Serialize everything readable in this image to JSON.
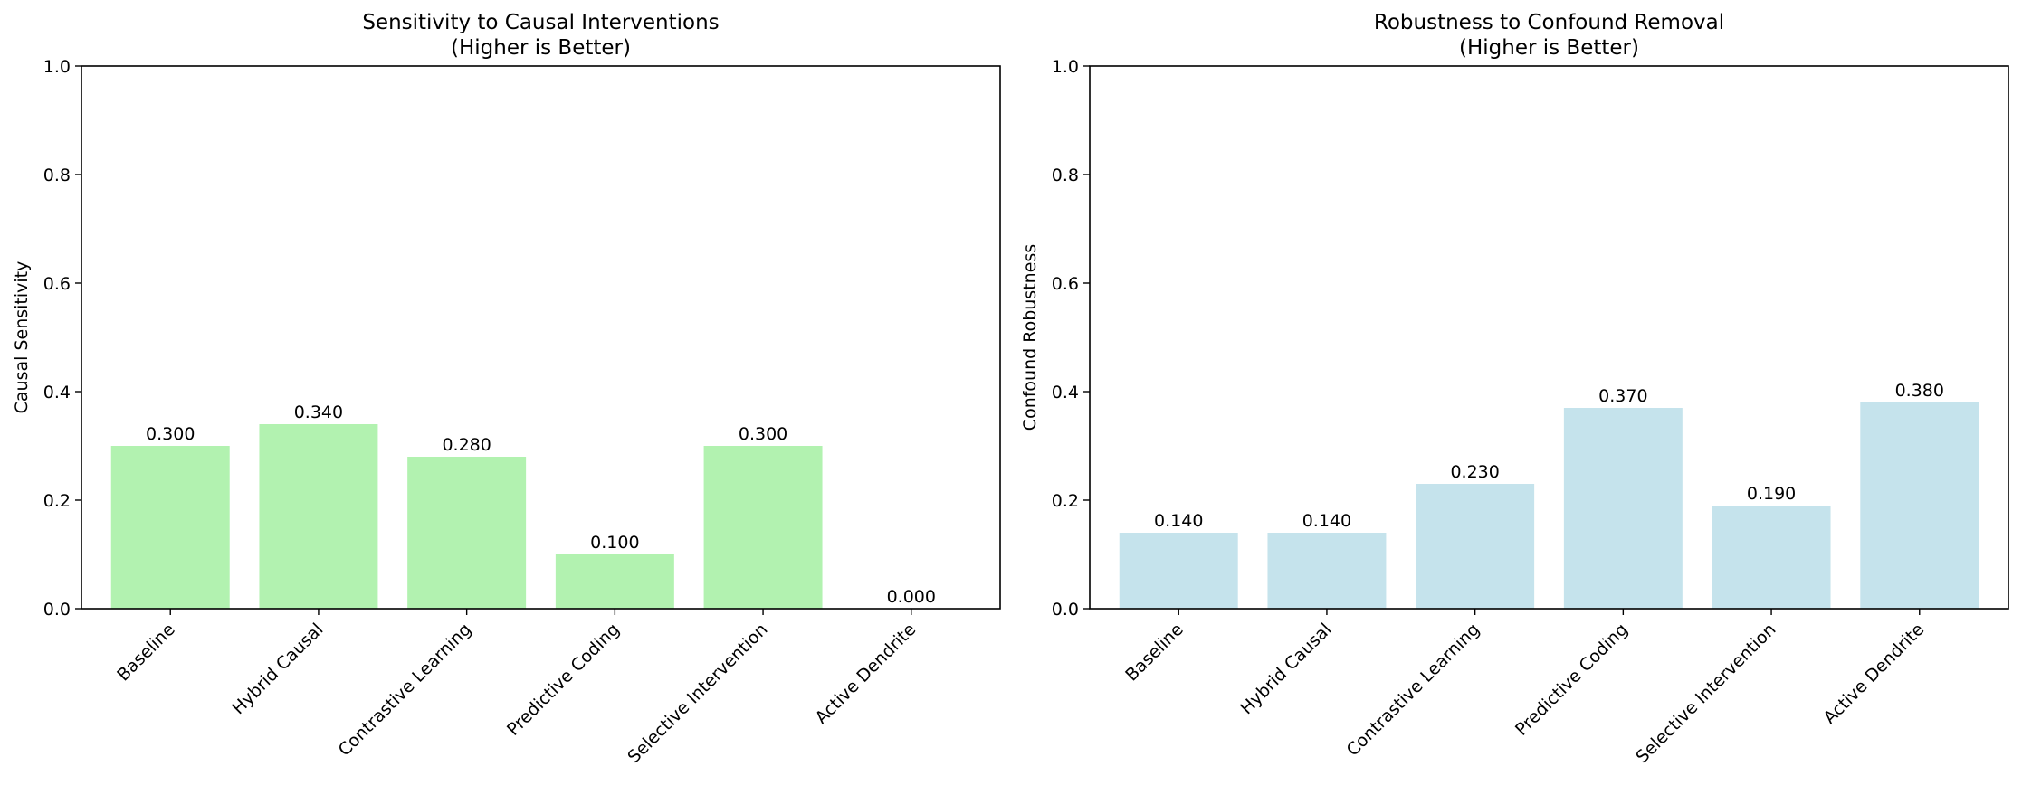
{
  "chart_data": [
    {
      "type": "bar",
      "title": "Sensitivity to Causal Interventions\n(Higher is Better)",
      "xlabel": "",
      "ylabel": "Causal Sensitivity",
      "ylim": [
        0,
        1.0
      ],
      "yticks": [
        "0.0",
        "0.2",
        "0.4",
        "0.6",
        "0.8",
        "1.0"
      ],
      "categories": [
        "Baseline",
        "Hybrid Causal",
        "Contrastive Learning",
        "Predictive Coding",
        "Selective Intervention",
        "Active Dendrite"
      ],
      "values": [
        0.3,
        0.34,
        0.28,
        0.1,
        0.3,
        0.0
      ],
      "value_labels": [
        "0.300",
        "0.340",
        "0.280",
        "0.100",
        "0.300",
        "0.000"
      ],
      "bar_color": "#b2f2b0",
      "grid": false
    },
    {
      "type": "bar",
      "title": "Robustness to Confound Removal\n(Higher is Better)",
      "xlabel": "",
      "ylabel": "Confound Robustness",
      "ylim": [
        0,
        1.0
      ],
      "yticks": [
        "0.0",
        "0.2",
        "0.4",
        "0.6",
        "0.8",
        "1.0"
      ],
      "categories": [
        "Baseline",
        "Hybrid Causal",
        "Contrastive Learning",
        "Predictive Coding",
        "Selective Intervention",
        "Active Dendrite"
      ],
      "values": [
        0.14,
        0.14,
        0.23,
        0.37,
        0.19,
        0.38
      ],
      "value_labels": [
        "0.140",
        "0.140",
        "0.230",
        "0.370",
        "0.190",
        "0.380"
      ],
      "bar_color": "#c5e3ec",
      "grid": false
    }
  ]
}
